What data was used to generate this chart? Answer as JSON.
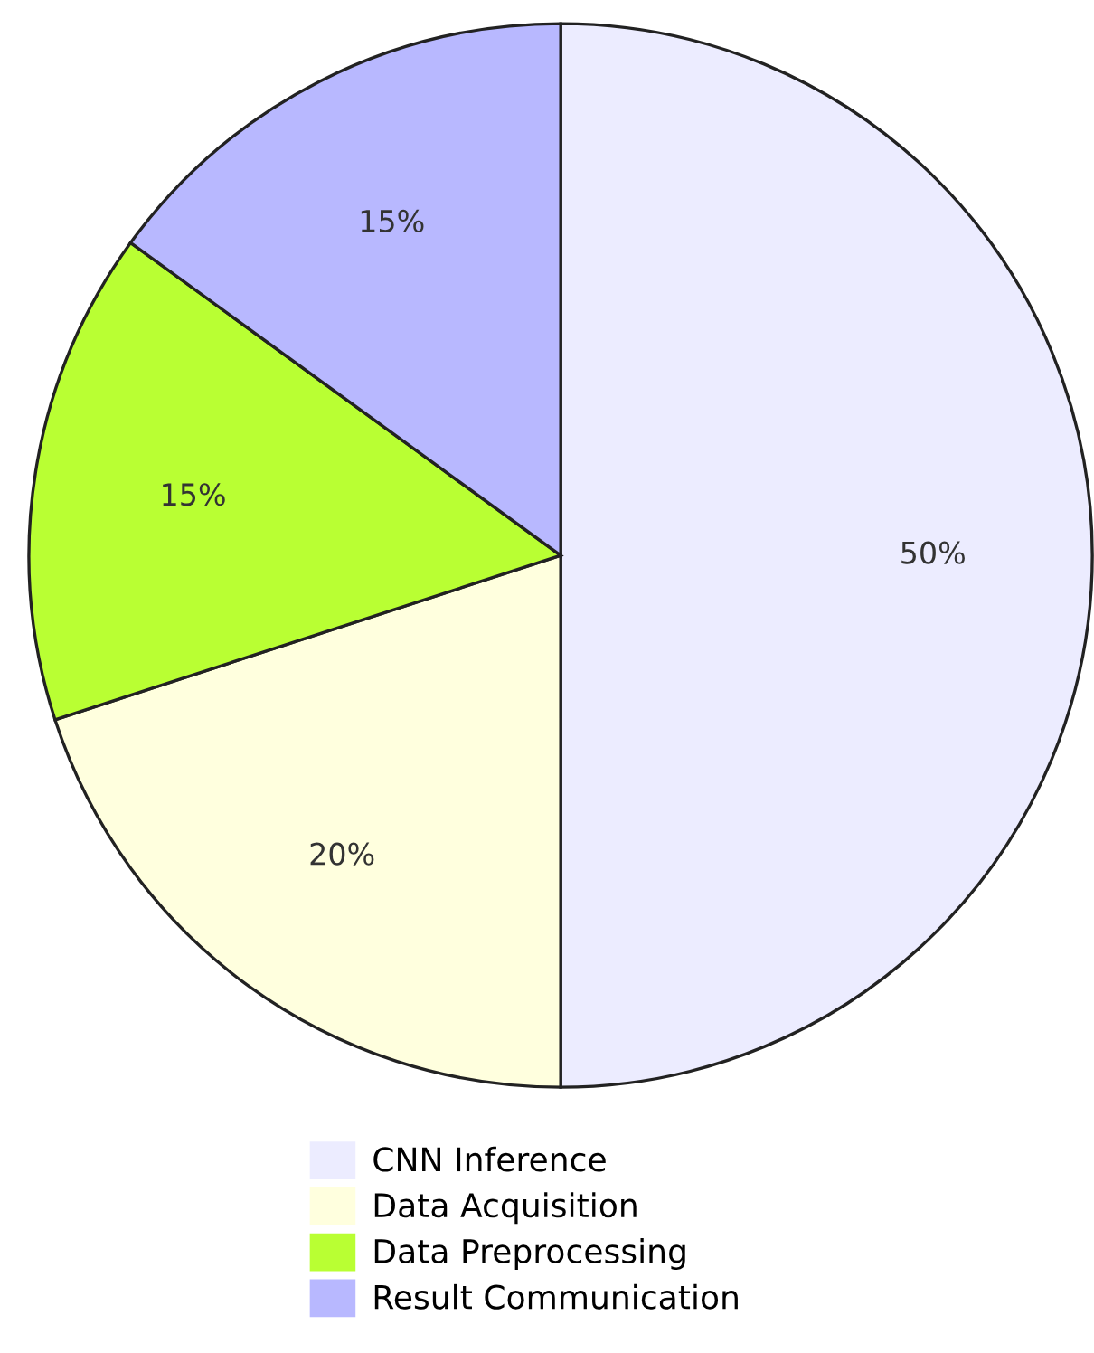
{
  "chart_data": {
    "type": "pie",
    "categories": [
      "CNN Inference",
      "Data Acquisition",
      "Data Preprocessing",
      "Result Communication"
    ],
    "values": [
      50,
      20,
      15,
      15
    ],
    "value_labels": [
      "50%",
      "20%",
      "15%",
      "15%"
    ],
    "colors": [
      "#ececff",
      "#ffffde",
      "#b9ff33",
      "#b8b8ff"
    ],
    "legend": "bottom"
  }
}
